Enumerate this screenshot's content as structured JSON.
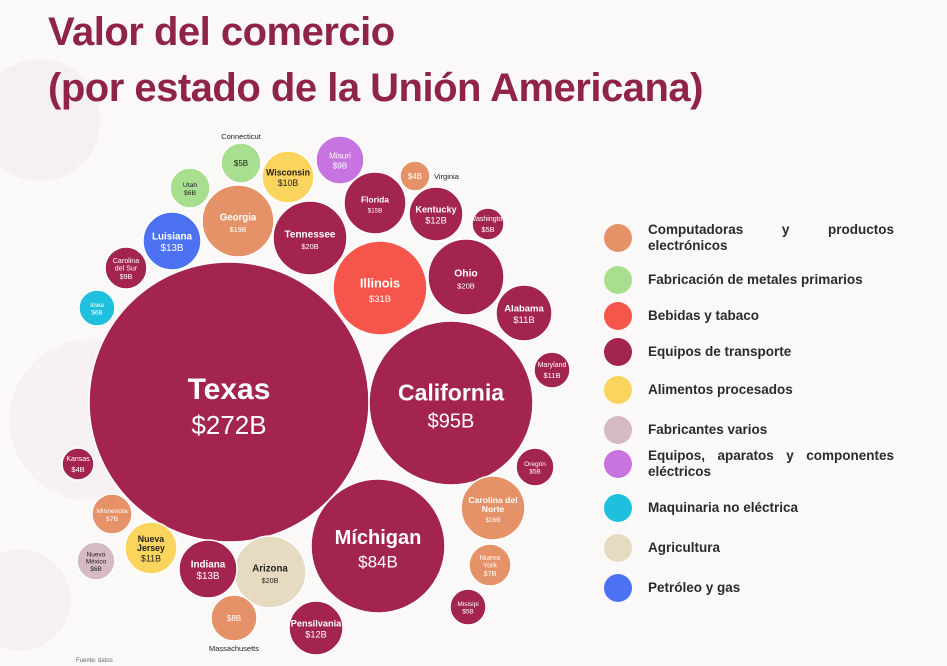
{
  "title_line1": "Valor del comercio",
  "title_line2": "(por estado de la Unión Americana)",
  "footnote": "Fuente: datos",
  "colors": {
    "Computadoras y productos electrónicos": "#e59268",
    "Fabricación de metales primarios": "#a7df8f",
    "Bebidas y tabaco": "#f6554b",
    "Equipos de transporte": "#a3244f",
    "Alimentos procesados": "#fad45c",
    "Fabricantes varios": "#d5b9c4",
    "Equipos, aparatos y componentes eléctricos": "#c773e0",
    "Maquinaria no eléctrica": "#1ec0de",
    "Agricultura": "#e6dac0",
    "Petróleo y gas": "#4d72f1"
  },
  "chart_data": {
    "type": "bubble",
    "unit": "USD billions",
    "legend_position": "right",
    "items": [
      {
        "state": "Texas",
        "label": "$272B",
        "value": 272,
        "category": "Equipos de transporte"
      },
      {
        "state": "California",
        "label": "$95B",
        "value": 95,
        "category": "Equipos de transporte"
      },
      {
        "state": "Míchigan",
        "label": "$84B",
        "value": 84,
        "category": "Equipos de transporte"
      },
      {
        "state": "Illinois",
        "label": "$31B",
        "value": 31,
        "category": "Bebidas y tabaco"
      },
      {
        "state": "Ohio",
        "label": "$20B",
        "value": 20,
        "category": "Equipos de transporte"
      },
      {
        "state": "Tennessee",
        "label": "$20B",
        "value": 20,
        "category": "Equipos de transporte"
      },
      {
        "state": "Arizona",
        "label": "$20B",
        "value": 20,
        "category": "Agricultura"
      },
      {
        "state": "Georgia",
        "label": "$19B",
        "value": 19,
        "category": "Computadoras y productos electrónicos"
      },
      {
        "state": "Carolina del Norte",
        "label": "$16B",
        "value": 16,
        "category": "Computadoras y productos electrónicos"
      },
      {
        "state": "Florida",
        "label": "$15B",
        "value": 15,
        "category": "Equipos de transporte"
      },
      {
        "state": "Luisiana",
        "label": "$13B",
        "value": 13,
        "category": "Petróleo y gas"
      },
      {
        "state": "Indiana",
        "label": "$13B",
        "value": 13,
        "category": "Equipos de transporte"
      },
      {
        "state": "Kentucky",
        "label": "$12B",
        "value": 12,
        "category": "Equipos de transporte"
      },
      {
        "state": "Pensilvania",
        "label": "$12B",
        "value": 12,
        "category": "Equipos de transporte"
      },
      {
        "state": "Alabama",
        "label": "$11B",
        "value": 11,
        "category": "Equipos de transporte"
      },
      {
        "state": "Maryland",
        "label": "$11B",
        "value": 11,
        "category": "Equipos de transporte"
      },
      {
        "state": "Nueva Jersey",
        "label": "$11B",
        "value": 11,
        "category": "Alimentos procesados"
      },
      {
        "state": "Wisconsin",
        "label": "$10B",
        "value": 10,
        "category": "Alimentos procesados"
      },
      {
        "state": "Misuri",
        "label": "$9B",
        "value": 9,
        "category": "Equipos, aparatos y componentes eléctricos"
      },
      {
        "state": "Carolina del Sur",
        "label": "$9B",
        "value": 9,
        "category": "Equipos de transporte"
      },
      {
        "state": "Massachusetts",
        "label": "$8B",
        "value": 8,
        "category": "Computadoras y productos electrónicos"
      },
      {
        "state": "Minnesota",
        "label": "$7B",
        "value": 7,
        "category": "Computadoras y productos electrónicos"
      },
      {
        "state": "Nueva York",
        "label": "$7B",
        "value": 7,
        "category": "Computadoras y productos electrónicos"
      },
      {
        "state": "Utah",
        "label": "$6B",
        "value": 6,
        "category": "Fabricación de metales primarios"
      },
      {
        "state": "Iowa",
        "label": "$6B",
        "value": 6,
        "category": "Maquinaria no eléctrica"
      },
      {
        "state": "Nuevo México",
        "label": "$6B",
        "value": 6,
        "category": "Fabricantes varios"
      },
      {
        "state": "Connecticut",
        "label": "$5B",
        "value": 5,
        "category": "Fabricación de metales primarios"
      },
      {
        "state": "Washington",
        "label": "$5B",
        "value": 5,
        "category": "Equipos de transporte"
      },
      {
        "state": "Oregón",
        "label": "$5B",
        "value": 5,
        "category": "Equipos de transporte"
      },
      {
        "state": "Misisipi",
        "label": "$5B",
        "value": 5,
        "category": "Equipos de transporte"
      },
      {
        "state": "Virginia",
        "label": "$4B",
        "value": 4,
        "category": "Computadoras y productos electrónicos"
      },
      {
        "state": "Kansas",
        "label": "$4B",
        "value": 4,
        "category": "Equipos de transporte"
      }
    ],
    "legend": [
      "Computadoras y productos electrónicos",
      "Fabricación de metales primarios",
      "Bebidas y tabaco",
      "Equipos de transporte",
      "Alimentos procesados",
      "Fabricantes varios",
      "Equipos, aparatos y componentes eléctricos",
      "Maquinaria no eléctrica",
      "Agricultura",
      "Petróleo y gas"
    ]
  }
}
